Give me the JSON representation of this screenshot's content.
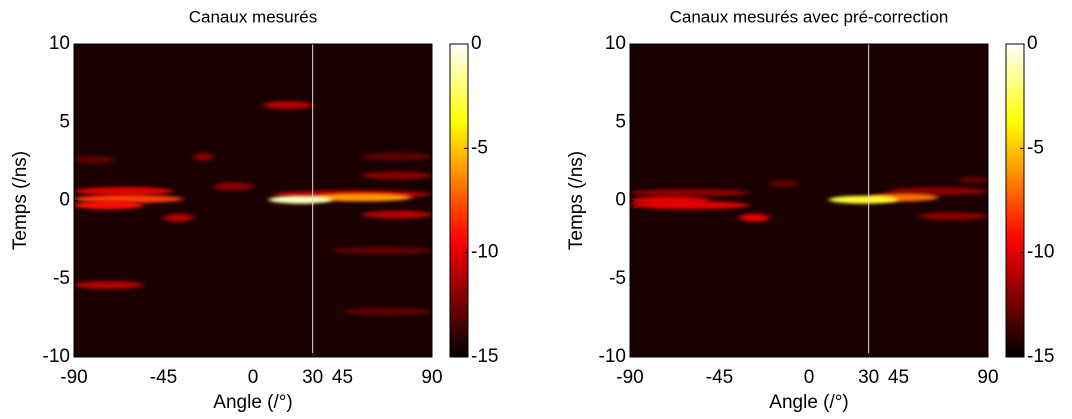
{
  "chart_data": [
    {
      "type": "heatmap",
      "title": "Canaux mesurés",
      "x_label": "Angle (/°)",
      "y_label": "Temps (/ns)",
      "xlim": [
        -90,
        90
      ],
      "ylim": [
        -10,
        10
      ],
      "xticks": [
        -90,
        -45,
        0,
        30,
        45,
        90
      ],
      "yticks": [
        -10,
        -5,
        0,
        5,
        10
      ],
      "clim": [
        -15,
        0
      ],
      "cticks": [
        0,
        -5,
        -10,
        -15
      ],
      "colormap": "hot",
      "vline": 30,
      "streaks": [
        {
          "x": [
            -90,
            -40
          ],
          "y": 0.6,
          "value": -10
        },
        {
          "x": [
            -90,
            -35
          ],
          "y": 0.1,
          "value": -8
        },
        {
          "x": [
            -90,
            -55
          ],
          "y": -0.3,
          "value": -9
        },
        {
          "x": [
            -20,
            0
          ],
          "y": 0.9,
          "value": -12
        },
        {
          "x": [
            5,
            30
          ],
          "y": 6.1,
          "value": -11
        },
        {
          "x": [
            -90,
            -55
          ],
          "y": -5.4,
          "value": -11
        },
        {
          "x": [
            10,
            90
          ],
          "y": 0.4,
          "value": -11
        },
        {
          "x": [
            30,
            80
          ],
          "y": 0.2,
          "value": -6
        },
        {
          "x": [
            8,
            40
          ],
          "y": 0.05,
          "value": -1
        },
        {
          "x": [
            55,
            90
          ],
          "y": 1.6,
          "value": -12
        },
        {
          "x": [
            55,
            90
          ],
          "y": 2.8,
          "value": -13
        },
        {
          "x": [
            40,
            90
          ],
          "y": -3.2,
          "value": -13
        },
        {
          "x": [
            45,
            90
          ],
          "y": -7.1,
          "value": -13
        },
        {
          "x": [
            55,
            90
          ],
          "y": -0.9,
          "value": -11
        },
        {
          "x": [
            -45,
            -30
          ],
          "y": -1.1,
          "value": -11
        },
        {
          "x": [
            -90,
            -70
          ],
          "y": 2.6,
          "value": -13
        },
        {
          "x": [
            -30,
            -20
          ],
          "y": 2.8,
          "value": -12
        }
      ]
    },
    {
      "type": "heatmap",
      "title": "Canaux mesurés avec pré-correction",
      "x_label": "Angle (/°)",
      "y_label": "Temps (/ns)",
      "xlim": [
        -90,
        90
      ],
      "ylim": [
        -10,
        10
      ],
      "xticks": [
        -90,
        -45,
        0,
        30,
        45,
        90
      ],
      "yticks": [
        -10,
        -5,
        0,
        5,
        10
      ],
      "clim": [
        -15,
        0
      ],
      "cticks": [
        0,
        -5,
        -10,
        -15
      ],
      "colormap": "hot",
      "vline": 30,
      "streaks": [
        {
          "x": [
            -90,
            -30
          ],
          "y": 0.5,
          "value": -12
        },
        {
          "x": [
            -90,
            -50
          ],
          "y": 0,
          "value": -10
        },
        {
          "x": [
            -90,
            -30
          ],
          "y": -0.3,
          "value": -10
        },
        {
          "x": [
            -35,
            -20
          ],
          "y": -1.1,
          "value": -10
        },
        {
          "x": [
            -20,
            -5
          ],
          "y": 1.1,
          "value": -13
        },
        {
          "x": [
            40,
            90
          ],
          "y": 0.6,
          "value": -12
        },
        {
          "x": [
            30,
            65
          ],
          "y": 0.2,
          "value": -7
        },
        {
          "x": [
            10,
            45
          ],
          "y": 0.05,
          "value": -3
        },
        {
          "x": [
            55,
            90
          ],
          "y": -1,
          "value": -12
        },
        {
          "x": [
            75,
            90
          ],
          "y": 1.3,
          "value": -13
        }
      ]
    }
  ]
}
